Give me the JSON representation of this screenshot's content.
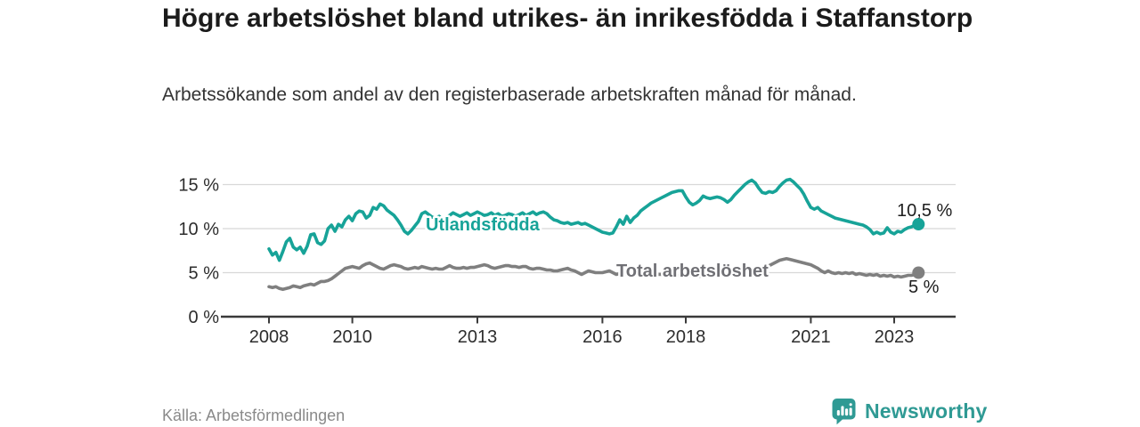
{
  "footer": {
    "source": "Källa: Arbetsförmedlingen",
    "brand": "Newsworthy"
  },
  "colors": {
    "foreign_born_line": "#17a398",
    "total_line": "#7f7f7f",
    "total_label": "#707075",
    "axis": "#3a3a3a",
    "gridline": "#d8d8d8",
    "tick_text": "#2d2d2d",
    "end_label_text": "#1d1d1d",
    "brand_teal": "#2f9a94"
  },
  "chart_data": {
    "type": "line",
    "title": "Högre arbetslöshet bland utrikes- än inrikesfödda i Staffanstorp",
    "subtitle": "Arbetssökande som andel av den registerbaserade arbetskraften månad för månad.",
    "y_unit": "%",
    "grid": "horizontal",
    "legend_position": "inline-labels",
    "xlim": [
      2007.9,
      2024.4
    ],
    "ylim": [
      0,
      16.8
    ],
    "x_start_year": 2008,
    "x_step_months": 1,
    "x_ticks": [
      {
        "v": 2008,
        "label": "2008"
      },
      {
        "v": 2010,
        "label": "2010"
      },
      {
        "v": 2013,
        "label": "2013"
      },
      {
        "v": 2016,
        "label": "2016"
      },
      {
        "v": 2018,
        "label": "2018"
      },
      {
        "v": 2021,
        "label": "2021"
      },
      {
        "v": 2023,
        "label": "2023"
      }
    ],
    "y_ticks": [
      {
        "v": 15,
        "label": "15 %"
      },
      {
        "v": 10,
        "label": "10 %"
      },
      {
        "v": 5,
        "label": "5 %"
      },
      {
        "v": 0,
        "label": "0 %"
      }
    ],
    "series": [
      {
        "name": "Total arbetslöshet",
        "color": "#7f7f7f",
        "label_color": "#707075",
        "end_label": "5 %",
        "values": [
          3.4,
          3.3,
          3.4,
          3.2,
          3.1,
          3.2,
          3.3,
          3.5,
          3.4,
          3.3,
          3.5,
          3.6,
          3.7,
          3.6,
          3.8,
          4.0,
          4.0,
          4.1,
          4.3,
          4.6,
          4.9,
          5.2,
          5.5,
          5.6,
          5.7,
          5.6,
          5.5,
          5.8,
          6.0,
          6.1,
          5.9,
          5.7,
          5.5,
          5.4,
          5.6,
          5.8,
          5.9,
          5.8,
          5.7,
          5.5,
          5.4,
          5.5,
          5.6,
          5.5,
          5.7,
          5.6,
          5.5,
          5.4,
          5.5,
          5.4,
          5.4,
          5.6,
          5.8,
          5.6,
          5.5,
          5.5,
          5.6,
          5.5,
          5.6,
          5.6,
          5.7,
          5.8,
          5.9,
          5.8,
          5.6,
          5.5,
          5.6,
          5.7,
          5.8,
          5.8,
          5.7,
          5.7,
          5.6,
          5.7,
          5.7,
          5.5,
          5.4,
          5.5,
          5.5,
          5.4,
          5.3,
          5.3,
          5.2,
          5.2,
          5.3,
          5.4,
          5.5,
          5.3,
          5.2,
          5.0,
          4.8,
          5.0,
          5.2,
          5.1,
          5.0,
          5.0,
          5.0,
          5.1,
          5.2,
          5.0,
          4.8,
          4.9,
          4.9,
          4.8,
          4.9,
          4.8,
          4.8,
          4.8,
          4.9,
          5.0,
          5.0,
          4.9,
          4.8,
          4.8,
          4.7,
          4.7,
          4.8,
          4.7,
          4.7,
          4.8,
          4.8,
          4.7,
          4.7,
          4.6,
          4.6,
          4.7,
          4.7,
          4.6,
          4.7,
          4.7,
          4.7,
          4.7,
          4.7,
          4.8,
          4.8,
          4.9,
          4.9,
          5.0,
          5.1,
          5.2,
          5.3,
          5.4,
          5.5,
          5.6,
          5.8,
          6.0,
          6.2,
          6.4,
          6.5,
          6.6,
          6.5,
          6.4,
          6.3,
          6.2,
          6.1,
          6.0,
          5.9,
          5.7,
          5.5,
          5.2,
          5.0,
          5.2,
          5.0,
          4.9,
          5.0,
          4.9,
          5.0,
          4.9,
          5.0,
          4.8,
          4.9,
          4.8,
          4.7,
          4.8,
          4.7,
          4.8,
          4.6,
          4.7,
          4.6,
          4.7,
          4.5,
          4.6,
          4.5,
          4.6,
          4.7,
          4.7,
          4.8,
          5.0
        ]
      },
      {
        "name": "Utlandsfödda",
        "color": "#17a398",
        "label_color": "#17a398",
        "end_label": "10,5 %",
        "values": [
          7.7,
          7.0,
          7.3,
          6.4,
          7.4,
          8.5,
          8.9,
          7.9,
          7.6,
          7.9,
          7.2,
          8.0,
          9.3,
          9.4,
          8.4,
          8.2,
          8.6,
          10.0,
          10.4,
          9.7,
          10.5,
          10.2,
          11.0,
          11.4,
          10.9,
          11.7,
          12.0,
          11.9,
          11.2,
          11.5,
          12.4,
          12.2,
          12.8,
          12.6,
          12.1,
          11.8,
          11.5,
          11.0,
          10.4,
          9.7,
          9.4,
          9.8,
          10.3,
          10.8,
          11.7,
          11.9,
          11.6,
          11.3,
          11.2,
          11.4,
          11.0,
          11.2,
          11.5,
          11.8,
          11.6,
          11.4,
          11.6,
          11.8,
          11.5,
          11.7,
          11.9,
          11.7,
          11.5,
          11.6,
          11.8,
          11.5,
          11.7,
          11.4,
          11.5,
          11.7,
          11.6,
          11.4,
          11.6,
          11.8,
          11.5,
          11.7,
          11.9,
          11.6,
          11.8,
          11.9,
          11.7,
          11.3,
          11.0,
          10.9,
          10.7,
          10.6,
          10.7,
          10.5,
          10.6,
          10.7,
          10.5,
          10.6,
          10.4,
          10.2,
          10.0,
          9.8,
          9.6,
          9.5,
          9.4,
          9.5,
          10.2,
          11.0,
          10.5,
          11.4,
          10.7,
          11.2,
          11.5,
          12.0,
          12.3,
          12.6,
          12.9,
          13.1,
          13.3,
          13.5,
          13.7,
          13.9,
          14.1,
          14.2,
          14.3,
          14.3,
          13.6,
          13.0,
          12.7,
          12.9,
          13.2,
          13.7,
          13.5,
          13.4,
          13.5,
          13.6,
          13.5,
          13.3,
          13.0,
          13.3,
          13.8,
          14.2,
          14.6,
          15.0,
          15.3,
          15.5,
          15.2,
          14.6,
          14.1,
          14.0,
          14.2,
          14.1,
          14.3,
          14.8,
          15.2,
          15.5,
          15.6,
          15.3,
          14.9,
          14.5,
          13.9,
          13.1,
          12.4,
          12.2,
          12.4,
          12.0,
          11.8,
          11.6,
          11.4,
          11.2,
          11.1,
          11.0,
          10.9,
          10.8,
          10.7,
          10.6,
          10.5,
          10.4,
          10.2,
          9.9,
          9.4,
          9.6,
          9.4,
          9.5,
          10.1,
          9.6,
          9.4,
          9.7,
          9.6,
          9.9,
          10.1,
          10.2,
          10.4,
          10.5
        ]
      }
    ]
  }
}
